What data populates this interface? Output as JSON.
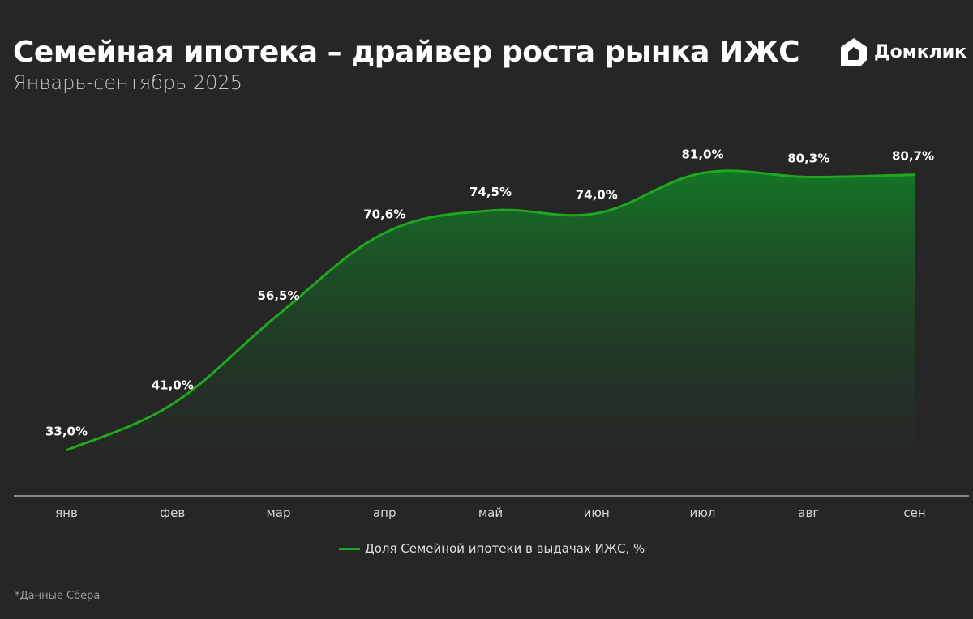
{
  "header": {
    "title": "Семейная ипотека – драйвер роста рынка ИЖС",
    "subtitle": "Январь-сентябрь 2025",
    "logo_text": "Домклик"
  },
  "chart_data": {
    "type": "area",
    "categories": [
      "янв",
      "фев",
      "мар",
      "апр",
      "май",
      "июн",
      "июл",
      "авг",
      "сен"
    ],
    "series": [
      {
        "name": "Доля Семейной ипотеки в выдачах ИЖС, %",
        "values": [
          33.0,
          41.0,
          56.5,
          70.6,
          74.5,
          74.0,
          81.0,
          80.3,
          80.7
        ]
      }
    ],
    "data_labels": [
      "33,0%",
      "41,0%",
      "56,5%",
      "70,6%",
      "74,5%",
      "74,0%",
      "81,0%",
      "80,3%",
      "80,7%"
    ],
    "legend_position": "bottom",
    "grid": false,
    "colors": {
      "line": "#1fa81f",
      "fill": "#166b28",
      "background": "#262626"
    }
  },
  "footnote": "*Данные Сбера"
}
